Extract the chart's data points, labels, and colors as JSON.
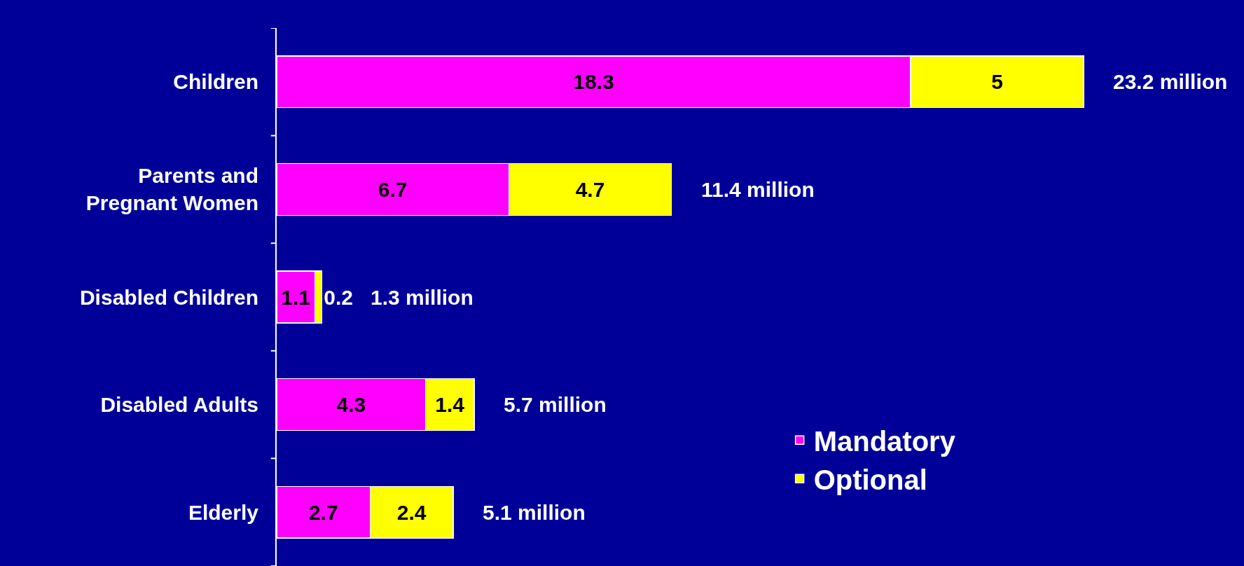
{
  "chart_data": {
    "type": "bar",
    "orientation": "horizontal",
    "stacked": true,
    "data_labels": true,
    "legend": "bottom right",
    "categories": [
      "Children",
      "Parents and Pregnant Women",
      "Disabled Children",
      "Disabled Adults",
      "Elderly"
    ],
    "series": [
      {
        "name": "Mandatory",
        "color": "#ff00ff",
        "values": [
          18.3,
          6.7,
          1.1,
          4.3,
          2.7
        ]
      },
      {
        "name": "Optional",
        "color": "#ffff00",
        "values": [
          5,
          4.7,
          0.2,
          1.4,
          2.4
        ]
      }
    ],
    "totals": [
      "23.2 million",
      "11.4 million",
      "1.3 million",
      "5.7 million",
      "5.1 million"
    ]
  }
}
